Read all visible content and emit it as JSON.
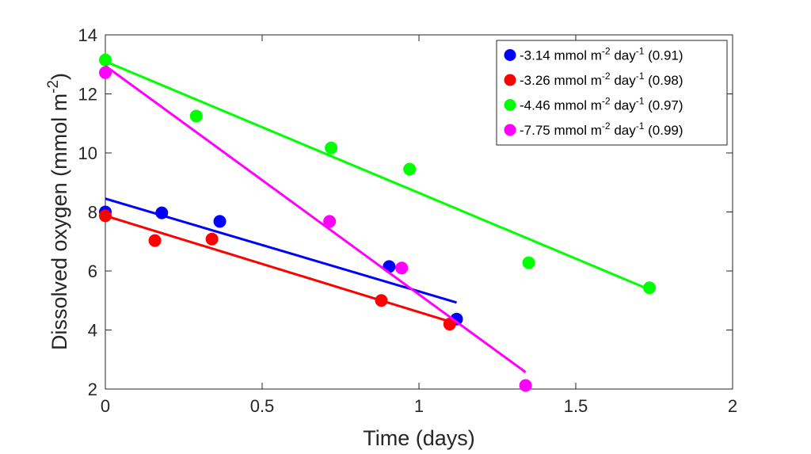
{
  "chart_data": {
    "type": "scatter",
    "xlabel": "Time (days)",
    "ylabel_main": "Dissolved oxygen (mmol m",
    "ylabel_sup": "-2",
    "ylabel_close": ")",
    "xlim": [
      0,
      2
    ],
    "ylim": [
      2,
      14
    ],
    "xticks": [
      0,
      0.5,
      1,
      1.5,
      2
    ],
    "xtick_labels": [
      "0",
      "0.5",
      "1",
      "1.5",
      "2"
    ],
    "yticks": [
      2,
      4,
      6,
      8,
      10,
      12,
      14
    ],
    "ytick_labels": [
      "2",
      "4",
      "6",
      "8",
      "10",
      "12",
      "14"
    ],
    "grid": false,
    "legend_position": "top-right",
    "series": [
      {
        "color": "#0000ff",
        "legend": {
          "value": "-3.14",
          "unit1": " mmol m",
          "sup1": "-2",
          "unit2": " day",
          "sup2": "-1",
          "r2": " (0.91)"
        },
        "points": [
          [
            0,
            8.0
          ],
          [
            0.18,
            7.97
          ],
          [
            0.365,
            7.68
          ],
          [
            0.905,
            6.15
          ],
          [
            1.12,
            4.37
          ]
        ],
        "fit": [
          [
            0,
            8.45
          ],
          [
            1.12,
            4.93
          ]
        ]
      },
      {
        "color": "#ff0000",
        "legend": {
          "value": "-3.26",
          "unit1": " mmol m",
          "sup1": "-2",
          "unit2": " day",
          "sup2": "-1",
          "r2": " (0.98)"
        },
        "points": [
          [
            0,
            7.87
          ],
          [
            0.158,
            7.03
          ],
          [
            0.34,
            7.08
          ],
          [
            0.88,
            5.0
          ],
          [
            1.098,
            4.2
          ]
        ],
        "fit": [
          [
            0,
            7.87
          ],
          [
            1.1,
            4.28
          ]
        ]
      },
      {
        "color": "#00ff00",
        "legend": {
          "value": "-4.46",
          "unit1": " mmol m",
          "sup1": "-2",
          "unit2": " day",
          "sup2": "-1",
          "r2": " (0.97)"
        },
        "points": [
          [
            0,
            13.15
          ],
          [
            0.29,
            11.25
          ],
          [
            0.72,
            10.17
          ],
          [
            0.97,
            9.45
          ],
          [
            1.35,
            6.28
          ],
          [
            1.735,
            5.43
          ]
        ],
        "fit": [
          [
            0,
            13.1
          ],
          [
            1.735,
            5.37
          ]
        ]
      },
      {
        "color": "#ff00ff",
        "legend": {
          "value": "-7.75",
          "unit1": " mmol m",
          "sup1": "-2",
          "unit2": " day",
          "sup2": "-1",
          "r2": " (0.99)"
        },
        "points": [
          [
            0,
            12.72
          ],
          [
            0.715,
            7.68
          ],
          [
            0.945,
            6.1
          ],
          [
            1.34,
            2.12
          ]
        ],
        "fit": [
          [
            0,
            12.95
          ],
          [
            1.34,
            2.57
          ]
        ]
      }
    ]
  }
}
